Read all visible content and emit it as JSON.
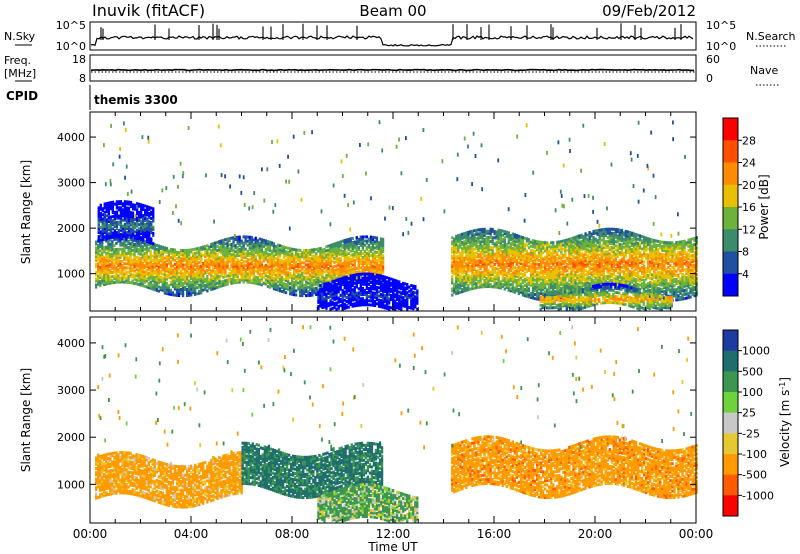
{
  "header": {
    "station": "Inuvik (fitACF)",
    "beam": "Beam 00",
    "date": "09/Feb/2012"
  },
  "panels": {
    "nsky": {
      "left_label": "N.Sky",
      "right_label": "N.Search",
      "left_ticks": [
        "10^5",
        "10^0"
      ],
      "right_ticks": [
        "10^5",
        "10^0"
      ]
    },
    "freq": {
      "left_label_line1": "Freq.",
      "left_label_line2": "[MHz]",
      "left_ticks": [
        "18",
        "8"
      ],
      "right_ticks": [
        "60",
        "0"
      ],
      "right_label": "Nave"
    },
    "cpid": {
      "label": "CPID",
      "value": "themis 3300"
    }
  },
  "colorbars": {
    "power": {
      "title": "Power [dB]",
      "ticks": [
        "28",
        "24",
        "20",
        "16",
        "12",
        "8",
        "4"
      ],
      "colors": [
        "#ff0000",
        "#ff5000",
        "#ff8c00",
        "#e8c000",
        "#6cb23c",
        "#3c8c6c",
        "#2050a0",
        "#0000ff"
      ]
    },
    "velocity": {
      "title": "Velocity [m s",
      "title_sup": "-1",
      "title_end": "]",
      "ticks": [
        "1000",
        "500",
        "100",
        "25",
        "-25",
        "-100",
        "-500",
        "-1000"
      ],
      "colors": [
        "#1e3ca0",
        "#1e6e6e",
        "#3c9650",
        "#6ed23c",
        "#c8c8c8",
        "#e6c832",
        "#ff9b00",
        "#ff5a00",
        "#ff0000"
      ]
    }
  },
  "chart_data": [
    {
      "type": "heatmap",
      "parameter": "power",
      "ylabel": "Slant Range [km]",
      "yticks": [
        1000,
        2000,
        3000,
        4000
      ],
      "ylim": [
        180,
        4550
      ],
      "xlim": [
        0,
        24
      ],
      "xticks": [
        "00:00",
        "04:00",
        "08:00",
        "12:00",
        "16:00",
        "20:00",
        "00:00"
      ],
      "zlim": [
        0,
        32
      ],
      "segments": [
        {
          "t": [
            0.2,
            11.6
          ],
          "r": [
            700,
            1700
          ],
          "peak": 26
        },
        {
          "t": [
            14.3,
            24
          ],
          "r": [
            600,
            1900
          ],
          "peak": 26
        },
        {
          "t": [
            17.8,
            23
          ],
          "r": [
            250,
            700
          ],
          "peak": 24
        },
        {
          "t": [
            0.3,
            2.5
          ],
          "r": [
            1700,
            2500
          ],
          "peak": 12
        },
        {
          "t": [
            9.0,
            13.0
          ],
          "r": [
            200,
            900
          ],
          "peak": 8
        }
      ]
    },
    {
      "type": "heatmap",
      "parameter": "velocity",
      "ylabel": "Slant Range [km]",
      "yticks": [
        1000,
        2000,
        3000,
        4000
      ],
      "ylim": [
        180,
        4550
      ],
      "xlim": [
        0,
        24
      ],
      "xticks": [
        "00:00",
        "04:00",
        "08:00",
        "12:00",
        "16:00",
        "20:00",
        "00:00"
      ],
      "xlabel": "Time UT",
      "zlim": [
        -1000,
        1000
      ],
      "segments": [
        {
          "t": [
            0.2,
            6.0
          ],
          "r": [
            700,
            1600
          ],
          "velocity": -250
        },
        {
          "t": [
            6.0,
            11.6
          ],
          "r": [
            900,
            1800
          ],
          "velocity": 600
        },
        {
          "t": [
            14.3,
            24
          ],
          "r": [
            900,
            1900
          ],
          "velocity": -300
        },
        {
          "t": [
            9.0,
            13.0
          ],
          "r": [
            200,
            900
          ],
          "velocity": 150
        }
      ]
    }
  ]
}
